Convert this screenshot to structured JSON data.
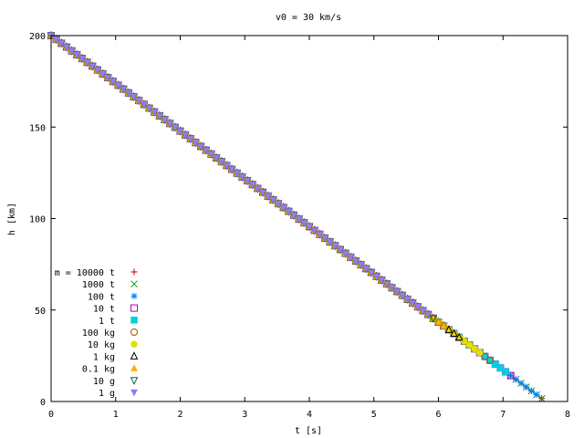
{
  "chart_data": {
    "type": "scatter",
    "title": "v0 = 30 km/s",
    "xlabel": "t [s]",
    "ylabel": "h [km]",
    "xlim": [
      0,
      8
    ],
    "ylim": [
      0,
      200
    ],
    "xticks": [
      "0",
      "1",
      "2",
      "3",
      "4",
      "5",
      "6",
      "7",
      "8"
    ],
    "yticks": [
      "0",
      "50",
      "100",
      "150",
      "200"
    ],
    "legend_position": "bottom-left",
    "grid": false,
    "slope": -26.1,
    "series": [
      {
        "name": "m = 10000 t",
        "marker": "plus",
        "color": "#c00000",
        "t_end": 7.66
      },
      {
        "name": "1000 t",
        "marker": "cross",
        "color": "#00a000",
        "t_end": 7.62
      },
      {
        "name": "100 t",
        "marker": "star",
        "color": "#0080ff",
        "t_end": 7.55
      },
      {
        "name": "10 t",
        "marker": "square-open",
        "color": "#b000c0",
        "t_end": 7.18
      },
      {
        "name": "1 t",
        "marker": "square-filled",
        "color": "#00d0e0",
        "t_end": 7.05
      },
      {
        "name": "100 kg",
        "marker": "circle-open",
        "color": "#a05000",
        "t_end": 6.85
      },
      {
        "name": "10 kg",
        "marker": "circle-filled",
        "color": "#e0e000",
        "t_end": 6.65
      },
      {
        "name": "1 kg",
        "marker": "triangle-open",
        "color": "#000000",
        "t_end": 6.38
      },
      {
        "name": "0.1 kg",
        "marker": "triangle-filled",
        "color": "#ffb000",
        "t_end": 6.12
      },
      {
        "name": "10 g",
        "marker": "triangle-down-open",
        "color": "#006040",
        "t_end": 5.97
      },
      {
        "name": "1 g",
        "marker": "triangle-down-filled",
        "color": "#9a78f0",
        "t_end": 5.85
      }
    ]
  }
}
